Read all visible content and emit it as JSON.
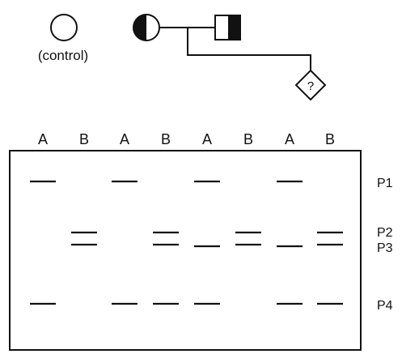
{
  "pedigree": {
    "control_label": "(control)",
    "unknown_symbol": "?",
    "individuals": [
      {
        "id": "control",
        "shape": "circle",
        "fill": "none"
      },
      {
        "id": "mother",
        "shape": "circle",
        "fill": "half-left"
      },
      {
        "id": "father",
        "shape": "square",
        "fill": "half-right"
      },
      {
        "id": "fetus",
        "shape": "diamond",
        "fill": "none"
      }
    ]
  },
  "gel": {
    "lanes": [
      "A",
      "B",
      "A",
      "B",
      "A",
      "B",
      "A",
      "B"
    ],
    "bands": [
      "P1",
      "P2",
      "P3",
      "P4"
    ],
    "presence": [
      {
        "lane": 1,
        "bands": [
          "P1",
          "P4"
        ]
      },
      {
        "lane": 2,
        "bands": [
          "P2",
          "P3"
        ]
      },
      {
        "lane": 3,
        "bands": [
          "P1",
          "P4"
        ]
      },
      {
        "lane": 4,
        "bands": [
          "P2",
          "P3",
          "P4"
        ]
      },
      {
        "lane": 5,
        "bands": [
          "P1",
          "P3",
          "P4"
        ]
      },
      {
        "lane": 6,
        "bands": [
          "P2",
          "P3"
        ]
      },
      {
        "lane": 7,
        "bands": [
          "P1",
          "P3",
          "P4"
        ]
      },
      {
        "lane": 8,
        "bands": [
          "P2",
          "P3",
          "P4"
        ]
      }
    ]
  },
  "colors": {
    "ink": "#111111",
    "paper": "#ffffff"
  }
}
